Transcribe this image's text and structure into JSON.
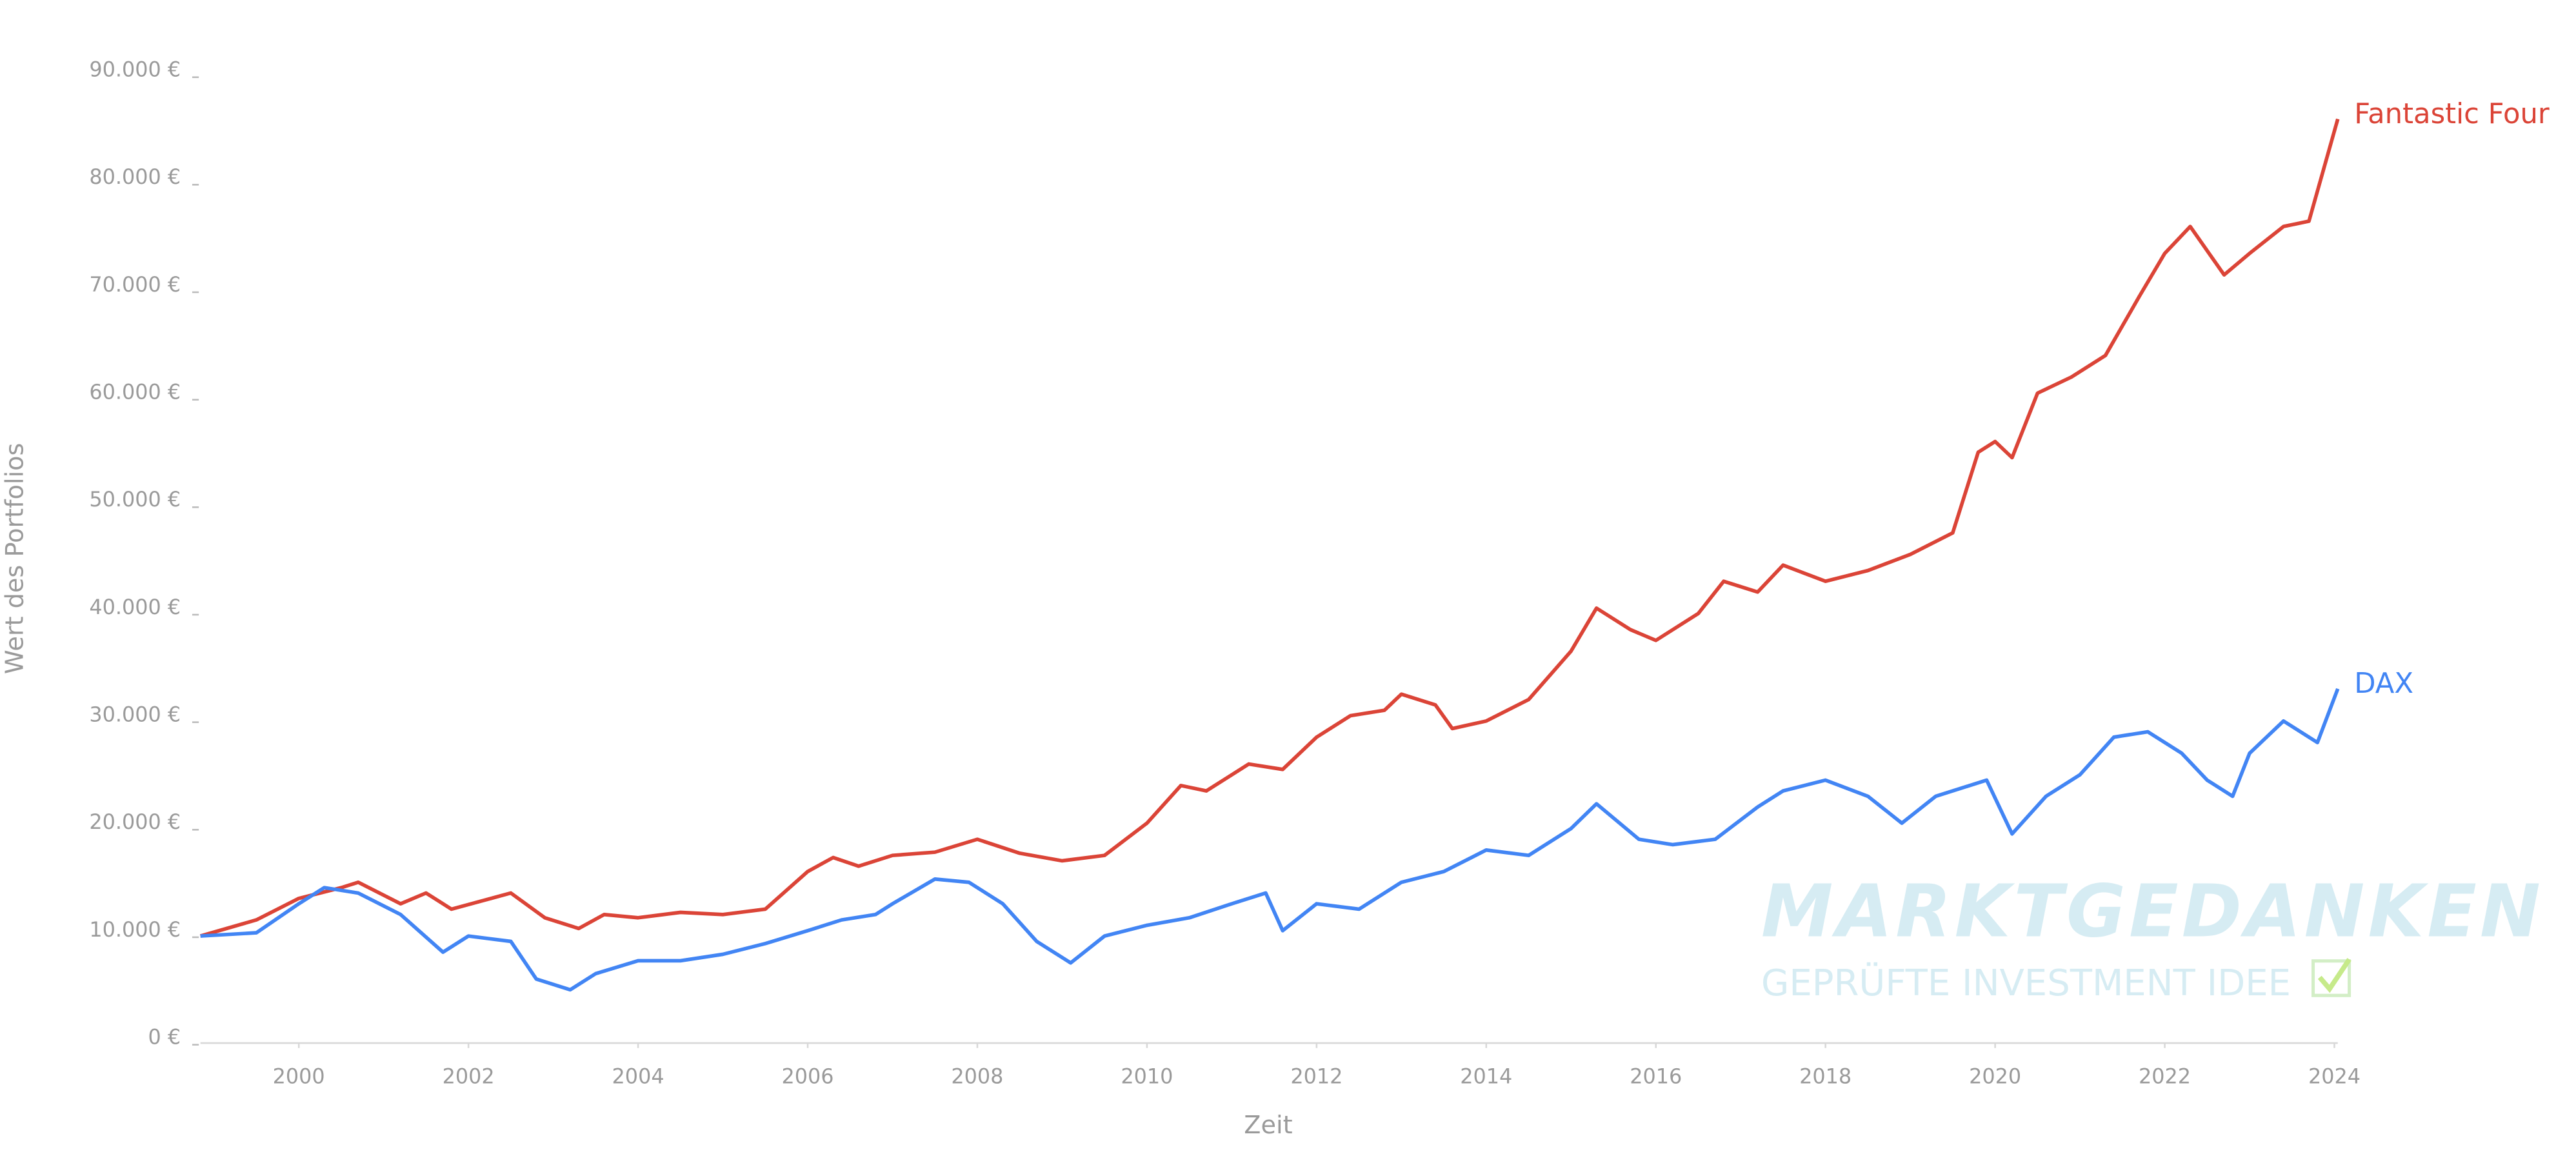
{
  "chart_data": {
    "type": "line",
    "y_axis_label": "Wert des Portfolios",
    "x_axis_label": "Zeit",
    "watermark_title": "MARKTGEDANKEN",
    "watermark_subtitle": "GEPRÜFTE INVESTMENT IDEE",
    "xlim": [
      1998.84,
      2024.04
    ],
    "xticks": [
      2000,
      2002,
      2004,
      2006,
      2008,
      2010,
      2012,
      2014,
      2016,
      2018,
      2020,
      2022,
      2024
    ],
    "ylim": [
      0,
      90000
    ],
    "yticks": [
      {
        "value": 0,
        "label": "0 €"
      },
      {
        "value": 10000,
        "label": "10.000 €"
      },
      {
        "value": 20000,
        "label": "20.000 €"
      },
      {
        "value": 30000,
        "label": "30.000 €"
      },
      {
        "value": 40000,
        "label": "40.000 €"
      },
      {
        "value": 50000,
        "label": "50.000 €"
      },
      {
        "value": 60000,
        "label": "60.000 €"
      },
      {
        "value": 70000,
        "label": "70.000 €"
      },
      {
        "value": 80000,
        "label": "80.000 €"
      },
      {
        "value": 90000,
        "label": "90.000 €"
      }
    ],
    "grid": false,
    "series": [
      {
        "name": "Fantastic Four",
        "color": "#db4437",
        "x": [
          1998.84,
          1999.5,
          2000.0,
          2000.5,
          2000.7,
          2001.2,
          2001.5,
          2001.8,
          2002.5,
          2002.9,
          2003.3,
          2003.6,
          2004.0,
          2004.5,
          2005.0,
          2005.5,
          2006.0,
          2006.3,
          2006.6,
          2007.0,
          2007.5,
          2008.0,
          2008.5,
          2009.0,
          2009.5,
          2010.0,
          2010.4,
          2010.7,
          2011.2,
          2011.6,
          2012.0,
          2012.4,
          2012.8,
          2013.0,
          2013.4,
          2013.6,
          2014.0,
          2014.5,
          2015.0,
          2015.3,
          2015.7,
          2016.0,
          2016.5,
          2016.8,
          2017.2,
          2017.5,
          2018.0,
          2018.5,
          2019.0,
          2019.5,
          2019.8,
          2020.0,
          2020.2,
          2020.5,
          2020.9,
          2021.3,
          2021.7,
          2022.0,
          2022.3,
          2022.7,
          2023.0,
          2023.4,
          2023.7,
          2024.04
        ],
        "values": [
          9500,
          11000,
          13000,
          14000,
          14500,
          12500,
          13500,
          12000,
          13500,
          11200,
          10200,
          11500,
          11200,
          11700,
          11500,
          12000,
          15500,
          16800,
          16000,
          17000,
          17300,
          18500,
          17200,
          16500,
          17000,
          20000,
          23500,
          23000,
          25500,
          25000,
          28000,
          30000,
          30500,
          32000,
          31000,
          28800,
          29500,
          31500,
          36000,
          40000,
          38000,
          37000,
          39500,
          42500,
          41500,
          44000,
          42500,
          43500,
          45000,
          47000,
          54500,
          55500,
          54000,
          60000,
          61500,
          63500,
          69000,
          73000,
          75500,
          71000,
          73000,
          75500,
          76000,
          85500
        ]
      },
      {
        "name": "DAX",
        "color": "#4285f4",
        "x": [
          1998.84,
          1999.5,
          2000.0,
          2000.3,
          2000.7,
          2001.2,
          2001.7,
          2002.0,
          2002.5,
          2002.8,
          2003.2,
          2003.5,
          2004.0,
          2004.5,
          2005.0,
          2005.5,
          2006.0,
          2006.4,
          2006.8,
          2007.0,
          2007.5,
          2007.9,
          2008.3,
          2008.7,
          2009.1,
          2009.5,
          2010.0,
          2010.5,
          2011.0,
          2011.4,
          2011.6,
          2012.0,
          2012.5,
          2013.0,
          2013.5,
          2014.0,
          2014.5,
          2015.0,
          2015.3,
          2015.8,
          2016.2,
          2016.7,
          2017.2,
          2017.5,
          2018.0,
          2018.5,
          2018.9,
          2019.3,
          2019.9,
          2020.2,
          2020.6,
          2021.0,
          2021.4,
          2021.8,
          2022.2,
          2022.5,
          2022.8,
          2023.0,
          2023.4,
          2023.8,
          2024.04
        ],
        "values": [
          9500,
          9800,
          12500,
          14000,
          13500,
          11500,
          8000,
          9500,
          9000,
          5500,
          4500,
          6000,
          7200,
          7200,
          7800,
          8800,
          10000,
          11000,
          11500,
          12500,
          14800,
          14500,
          12500,
          9000,
          7000,
          9500,
          10500,
          11200,
          12500,
          13500,
          10000,
          12500,
          12000,
          14500,
          15500,
          17500,
          17000,
          19500,
          21800,
          18500,
          18000,
          18500,
          21500,
          23000,
          24000,
          22500,
          20000,
          22500,
          24000,
          19000,
          22500,
          24500,
          28000,
          28500,
          26500,
          24000,
          22500,
          26500,
          29500,
          27500,
          32500
        ]
      }
    ]
  }
}
